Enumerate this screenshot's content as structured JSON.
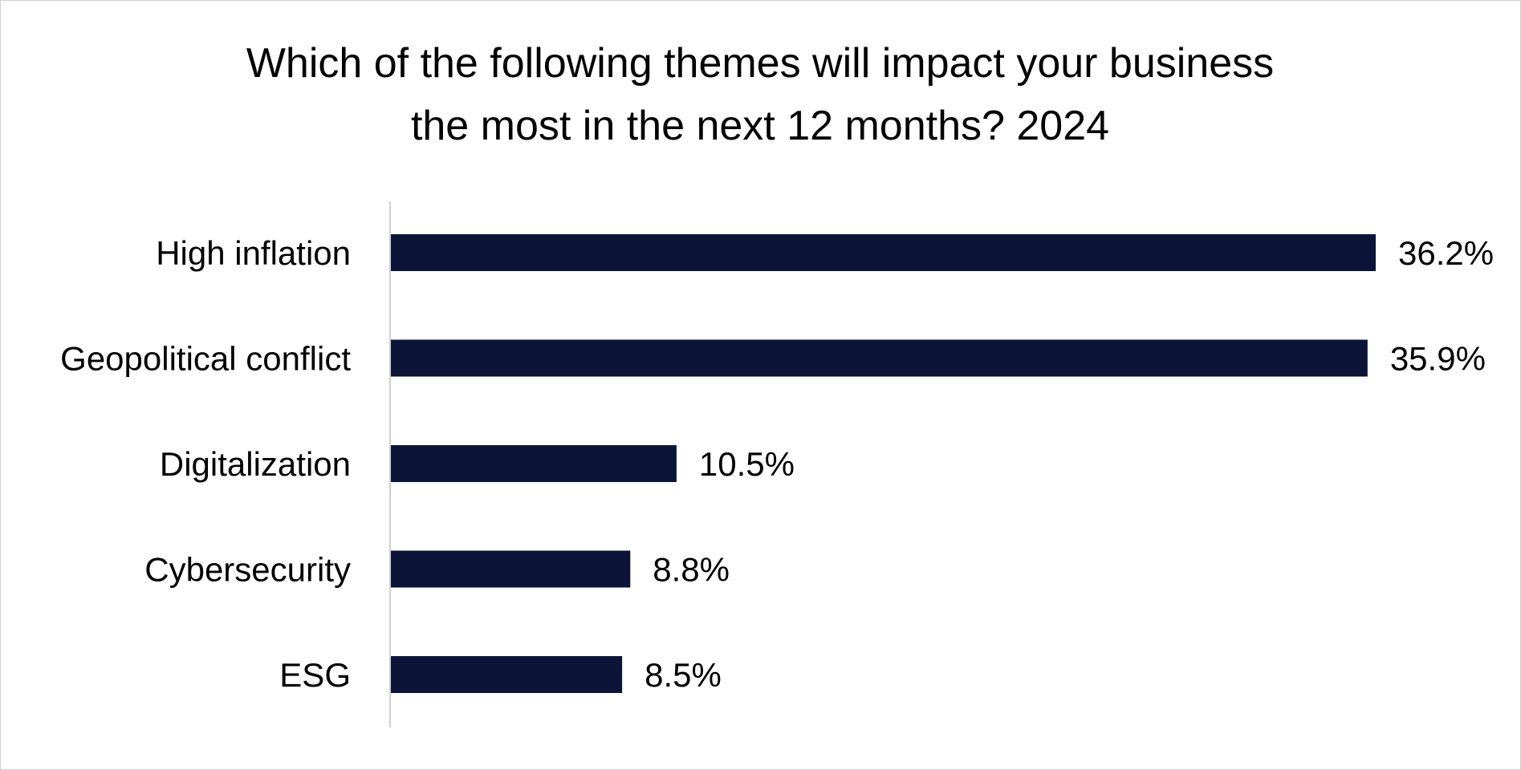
{
  "chart_data": {
    "type": "bar",
    "orientation": "horizontal",
    "title": "Which of the following themes will impact your business the most in the next 12 months? 2024",
    "title_lines": [
      "Which of the following themes will impact your business",
      "the most in the next 12 months? 2024"
    ],
    "categories": [
      "High inflation",
      "Geopolitical conflict",
      "Digitalization",
      "Cybersecurity",
      "ESG"
    ],
    "values": [
      36.2,
      35.9,
      10.5,
      8.8,
      8.5
    ],
    "value_labels": [
      "36.2%",
      "35.9%",
      "10.5%",
      "8.8%",
      "8.5%"
    ],
    "unit": "%",
    "xlabel": "",
    "ylabel": "",
    "xlim": [
      0,
      36.2
    ],
    "grid": false,
    "legend": "none",
    "bar_color": "#0c1538",
    "axis_color": "#d0d0d0"
  }
}
